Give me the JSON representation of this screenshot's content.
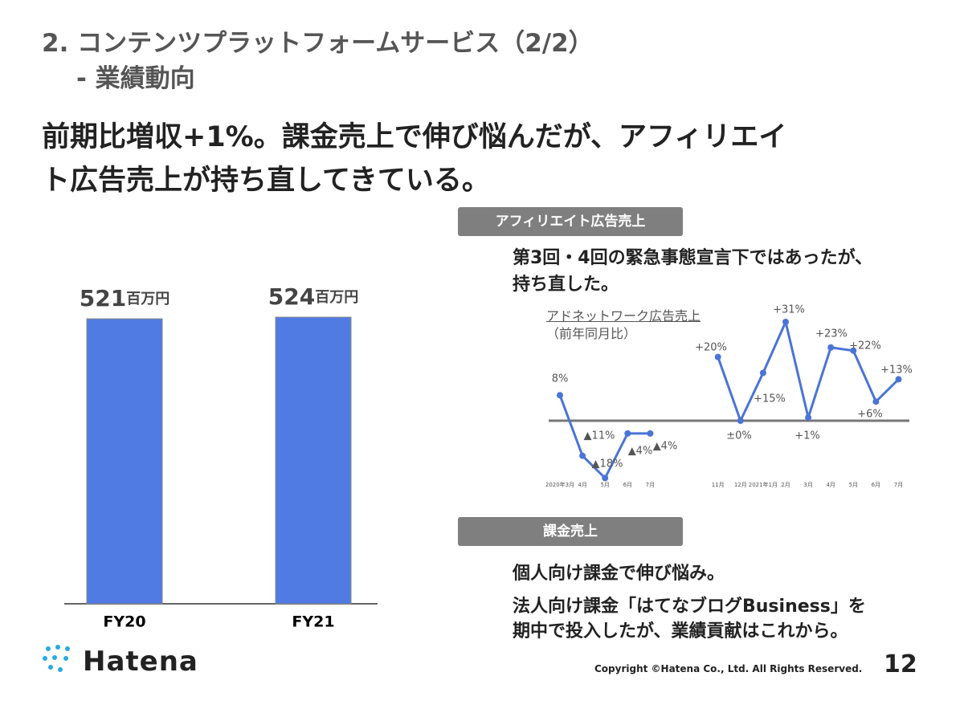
{
  "header": {
    "title": "2. コンテンツプラットフォームサービス（2/2）",
    "subtitle": "- 業績動向"
  },
  "headline": [
    "前期比増収+1%。課金売上で伸び悩んだが、アフィリエイ",
    "ト広告売上が持ち直してきている。"
  ],
  "affiliate": {
    "heading": "アフィリエイト広告売上",
    "text": [
      "第3回・4回の緊急事態宣言下ではあったが、",
      "持ち直した。"
    ]
  },
  "billing": {
    "heading": "課金売上",
    "text": [
      "個人向け課金で伸び悩み。",
      "法人向け課金「はてなブログBusiness」を",
      "期中で投入したが、業績貢献はこれから。"
    ]
  },
  "chart_data": [
    {
      "type": "bar",
      "categories": [
        "FY20",
        "FY21"
      ],
      "values": [
        521,
        524
      ],
      "unit": "百万円",
      "color": "#4f7be2"
    },
    {
      "type": "line",
      "title": "アドネットワーク広告売上",
      "subtitle": "（前年同月比）",
      "categories": [
        "2020年3月",
        "4月",
        "5月",
        "6月",
        "7月",
        null,
        null,
        "11月",
        "12月",
        "2021年1月",
        "2月",
        "3月",
        "4月",
        "5月",
        "6月",
        "7月"
      ],
      "values": [
        8,
        -11,
        -18,
        -4,
        -4,
        null,
        null,
        20,
        0,
        15,
        31,
        1,
        23,
        22,
        6,
        13
      ],
      "value_labels": [
        "8%",
        "▲11%",
        "▲18%",
        "▲4%",
        "▲4%",
        null,
        null,
        "+20%",
        "±0%",
        "+15%",
        "+31%",
        "+1%",
        "+23%",
        "+22%",
        "+6%",
        "+13%"
      ],
      "color": "#4a74d6"
    }
  ],
  "footer": {
    "logo": "Hatena",
    "copyright": "Copyright ©Hatena Co., Ltd. All Rights Reserved.",
    "page": "12"
  }
}
